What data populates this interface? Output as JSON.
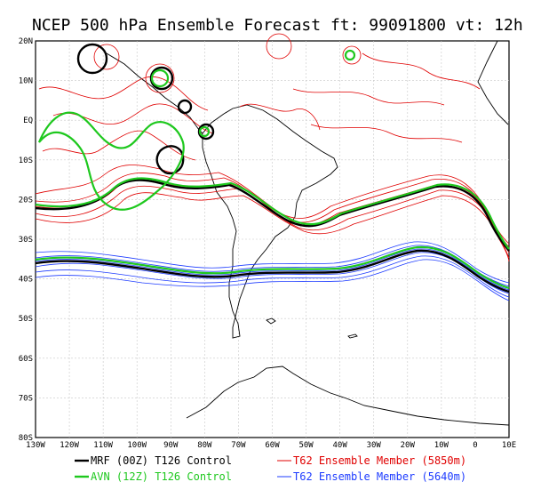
{
  "title": "NCEP 500 hPa Ensemble Forecast  ft: 99091800 vt: 12h",
  "map": {
    "lon_range": [
      -130,
      10
    ],
    "lat_range": [
      -80,
      20
    ],
    "lon_ticks": [
      "130W",
      "120W",
      "110W",
      "100W",
      "90W",
      "80W",
      "70W",
      "60W",
      "50W",
      "40W",
      "30W",
      "20W",
      "10W",
      "0",
      "10E"
    ],
    "lat_ticks": [
      "20N",
      "10N",
      "EQ",
      "10S",
      "20S",
      "30S",
      "40S",
      "50S",
      "60S",
      "70S",
      "80S"
    ],
    "grid": true
  },
  "legend": [
    {
      "label": "MRF (00Z) T126 Control",
      "color": "#000000"
    },
    {
      "label": "AVN (12Z) T126 Control",
      "color": "#1ec81e"
    },
    {
      "label": "T62 Ensemble Member (5850m)",
      "color": "#e00000"
    },
    {
      "label": "T62 Ensemble Member (5640m)",
      "color": "#1e3cff"
    }
  ]
}
